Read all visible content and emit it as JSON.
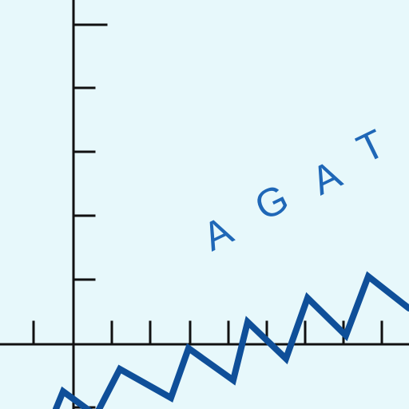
{
  "diagram": {
    "sequence_letters": [
      "A",
      "G",
      "A",
      "T"
    ],
    "colors": {
      "background": "#e7f8fb",
      "axis": "#111111",
      "wave": "#0f4f99",
      "letters": "#1f67b7"
    }
  }
}
